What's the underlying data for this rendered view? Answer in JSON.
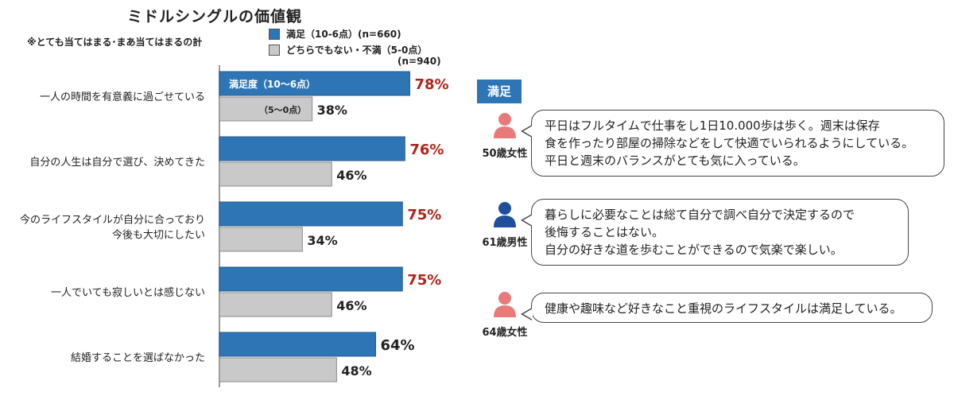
{
  "title": "ミドルシングルの価値観",
  "note": "※とても当てはまる･まあ当てはまるの計",
  "legend": {
    "series1": "満足（10-6点）(n=660)",
    "series2": "どちらでもない・不満（5-0点）",
    "series2_n": "(n=940)"
  },
  "colors": {
    "satisfied": "#2e75b6",
    "neutral": "#c9c9c9",
    "red_label": "#b02418",
    "icon_female": "#e87a7a",
    "icon_male": "#1f4e9a"
  },
  "chart_data": {
    "type": "bar",
    "orientation": "horizontal",
    "categories": [
      "一人の時間を有意義に過ごせている",
      "自分の人生は自分で選び、決めてきた",
      "今のライフスタイルが自分に合っており\n今後も大切にしたい",
      "一人でいても寂しいとは感じない",
      "結婚することを選ばなかった"
    ],
    "series": [
      {
        "name": "満足（10-6点）(n=660)",
        "values": [
          78,
          76,
          75,
          75,
          64
        ],
        "labels": [
          "78%",
          "76%",
          "75%",
          "75%",
          "64%"
        ]
      },
      {
        "name": "どちらでもない・不満（5-0点）(n=940)",
        "values": [
          38,
          46,
          34,
          46,
          48
        ],
        "labels": [
          "38%",
          "46%",
          "34%",
          "46%",
          "48%"
        ]
      }
    ],
    "inbar_labels": [
      "満足度（10〜6点）",
      "（5〜0点）"
    ],
    "red_value_rows": [
      0,
      1,
      2,
      3
    ],
    "xlim": [
      0,
      100
    ]
  },
  "panel": {
    "badge": "満足",
    "comments": [
      {
        "person": "50歳女性",
        "icon": "female-person-icon",
        "lines": [
          "平日はフルタイムで仕事をし1日10.000歩は歩く。週末は保存",
          "食を作ったり部屋の掃除などをして快適でいられるようにしている。",
          "平日と週末のバランスがとても気に入っている。"
        ]
      },
      {
        "person": "61歳男性",
        "icon": "male-person-icon",
        "lines": [
          "暮らしに必要なことは総て自分で調べ自分で決定するので",
          "後悔することはない。",
          "自分の好きな道を歩むことができるので気楽で楽しい。"
        ]
      },
      {
        "person": "64歳女性",
        "icon": "female-person-icon",
        "lines": [
          "健康や趣味など好きなこと重視のライフスタイルは満足している。"
        ]
      }
    ]
  }
}
